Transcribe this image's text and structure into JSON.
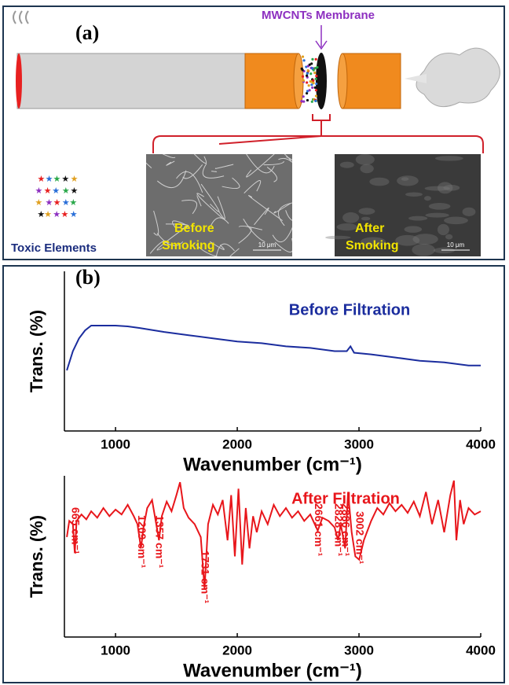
{
  "panel_a": {
    "label": "(a)",
    "membrane": "MWCNTs Membrane",
    "toxic": "Toxic Elements",
    "before": [
      "Before",
      "Smoking"
    ],
    "after": [
      "After",
      "Smoking"
    ],
    "scale_before": "10 μm",
    "scale_after": "10 μm"
  },
  "chart_data": [
    {
      "type": "line",
      "panel_label": "(b)",
      "x_label": "Wavenumber (cm⁻¹)",
      "y_label": "Trans. (%)",
      "xlim": [
        580,
        4000
      ],
      "ylim": [
        0,
        100
      ],
      "xticks": [
        1000,
        2000,
        3000,
        4000
      ],
      "x": [
        600,
        650,
        700,
        750,
        800,
        900,
        1000,
        1100,
        1200,
        1400,
        1600,
        1800,
        2000,
        2200,
        2400,
        2600,
        2800,
        2900,
        2930,
        2960,
        3100,
        3300,
        3500,
        3700,
        3900,
        4000
      ],
      "series": [
        {
          "name": "Before Filtration",
          "color": "#1b2d9e",
          "values": [
            38,
            50,
            58,
            63,
            66,
            66,
            66,
            65.5,
            64.5,
            62,
            60,
            58,
            56,
            55,
            53,
            52,
            50,
            50,
            53,
            49,
            48,
            46,
            44,
            43,
            41,
            41
          ]
        }
      ]
    },
    {
      "type": "line",
      "x_label": "Wavenumber (cm⁻¹)",
      "y_label": "Trans. (%)",
      "xlim": [
        580,
        4000
      ],
      "ylim": [
        0,
        100
      ],
      "xticks": [
        1000,
        2000,
        3000,
        4000
      ],
      "x": [
        600,
        620,
        650,
        665,
        680,
        720,
        760,
        800,
        850,
        900,
        950,
        1000,
        1050,
        1100,
        1150,
        1180,
        1209,
        1230,
        1260,
        1300,
        1330,
        1357,
        1380,
        1420,
        1460,
        1500,
        1530,
        1560,
        1600,
        1650,
        1700,
        1731,
        1760,
        1800,
        1840,
        1880,
        1920,
        1950,
        1980,
        2010,
        2040,
        2070,
        2100,
        2130,
        2160,
        2200,
        2250,
        2300,
        2350,
        2400,
        2450,
        2500,
        2550,
        2600,
        2661,
        2700,
        2750,
        2800,
        2828,
        2850,
        2886,
        2910,
        2940,
        2970,
        3002,
        3040,
        3100,
        3150,
        3200,
        3250,
        3300,
        3350,
        3400,
        3450,
        3500,
        3550,
        3600,
        3650,
        3700,
        3750,
        3780,
        3800,
        3830,
        3860,
        3900,
        3950,
        4000
      ],
      "series": [
        {
          "name": "After Filtration",
          "color": "#e8161b",
          "values": [
            62,
            72,
            70,
            52,
            72,
            76,
            73,
            78,
            74,
            80,
            75,
            79,
            76,
            82,
            75,
            70,
            55,
            68,
            80,
            85,
            72,
            60,
            75,
            84,
            78,
            88,
            96,
            80,
            74,
            70,
            62,
            30,
            70,
            82,
            76,
            85,
            60,
            88,
            50,
            92,
            45,
            80,
            55,
            75,
            65,
            78,
            70,
            82,
            75,
            80,
            74,
            78,
            72,
            76,
            66,
            74,
            72,
            68,
            60,
            70,
            55,
            90,
            65,
            50,
            48,
            60,
            72,
            80,
            76,
            83,
            78,
            82,
            77,
            84,
            75,
            90,
            70,
            85,
            65,
            88,
            97,
            60,
            85,
            70,
            80,
            76,
            78
          ]
        }
      ],
      "annotations": [
        {
          "x": 665,
          "text": "665 cm⁻¹"
        },
        {
          "x": 1209,
          "text": "1209 cm⁻¹"
        },
        {
          "x": 1357,
          "text": "1357 cm⁻¹"
        },
        {
          "x": 1731,
          "text": "1731 cm⁻¹"
        },
        {
          "x": 2661,
          "text": "2661 cm⁻¹"
        },
        {
          "x": 2828,
          "text": "2828 cm⁻¹"
        },
        {
          "x": 2886,
          "text": "2886 cm⁻¹"
        },
        {
          "x": 3002,
          "text": "3002 cm⁻¹"
        }
      ]
    }
  ]
}
